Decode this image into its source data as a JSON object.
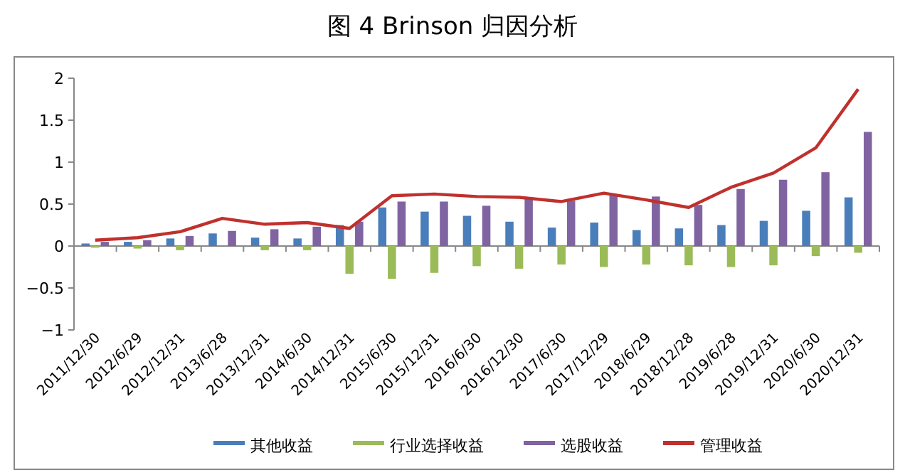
{
  "chart_data": {
    "type": "bar",
    "title": "图 4 Brinson 归因分析",
    "categories": [
      "2011/12/30",
      "2012/6/29",
      "2012/12/31",
      "2013/6/28",
      "2013/12/31",
      "2014/6/30",
      "2014/12/31",
      "2015/6/30",
      "2015/12/31",
      "2016/6/30",
      "2016/12/30",
      "2017/6/30",
      "2017/12/29",
      "2018/6/29",
      "2018/12/28",
      "2019/6/28",
      "2019/12/31",
      "2020/6/30",
      "2020/12/31"
    ],
    "series": [
      {
        "name": "其他收益",
        "color": "#4a7ebb",
        "values": [
          0.03,
          0.05,
          0.09,
          0.15,
          0.1,
          0.09,
          0.25,
          0.46,
          0.41,
          0.36,
          0.29,
          0.22,
          0.28,
          0.19,
          0.21,
          0.25,
          0.3,
          0.42,
          0.58
        ]
      },
      {
        "name": "行业选择收益",
        "color": "#9bbb59",
        "values": [
          -0.02,
          -0.03,
          -0.05,
          0,
          -0.05,
          -0.05,
          -0.33,
          -0.39,
          -0.32,
          -0.24,
          -0.27,
          -0.22,
          -0.25,
          -0.22,
          -0.23,
          -0.25,
          -0.23,
          -0.12,
          -0.08
        ]
      },
      {
        "name": "选股收益",
        "color": "#8064a2",
        "values": [
          0.05,
          0.07,
          0.12,
          0.18,
          0.2,
          0.23,
          0.29,
          0.53,
          0.53,
          0.48,
          0.58,
          0.54,
          0.61,
          0.59,
          0.49,
          0.68,
          0.79,
          0.88,
          1.36
        ]
      },
      {
        "name": "管理收益",
        "type": "line",
        "color": "#c0312d",
        "values": [
          0.07,
          0.1,
          0.17,
          0.33,
          0.26,
          0.28,
          0.21,
          0.6,
          0.62,
          0.59,
          0.58,
          0.53,
          0.63,
          0.55,
          0.46,
          0.7,
          0.87,
          1.17,
          1.87
        ]
      }
    ],
    "ylim": [
      -1,
      2
    ],
    "yticks": [
      -1,
      -0.5,
      0,
      0.5,
      1,
      1.5,
      2
    ],
    "legend": "bottom"
  }
}
